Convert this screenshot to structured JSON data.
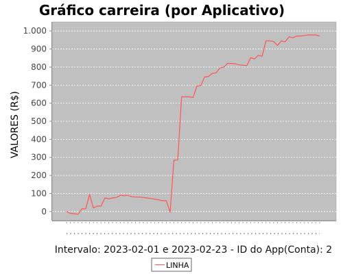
{
  "chart_data": {
    "type": "line",
    "title": "Gráfico carreira (por Aplicativo)",
    "ylabel": "VALORES (R$)",
    "xlabel": "Intervalo: 2023-02-01 e 2023-02-23 - ID do App(Conta): 2",
    "ylim": [
      -50,
      1050
    ],
    "yticks": [
      0,
      100,
      200,
      300,
      400,
      500,
      600,
      700,
      800,
      900,
      1000
    ],
    "ytick_labels": [
      "0",
      "100",
      "200",
      "300",
      "400",
      "500",
      "600",
      "700",
      "800",
      "900",
      "1.000"
    ],
    "grid": true,
    "legend_position": "bottom-center",
    "colors": {
      "line": "#ff5555",
      "plot_bg": "#c0c0c0",
      "grid": "#ffffff"
    },
    "series": [
      {
        "name": "LINHA",
        "values": [
          0,
          -10,
          -12,
          -15,
          15,
          15,
          95,
          20,
          30,
          30,
          75,
          70,
          75,
          78,
          90,
          88,
          90,
          82,
          80,
          80,
          78,
          75,
          72,
          68,
          65,
          60,
          60,
          -5,
          285,
          285,
          635,
          635,
          635,
          632,
          695,
          698,
          745,
          748,
          765,
          768,
          795,
          800,
          820,
          820,
          818,
          812,
          810,
          808,
          852,
          845,
          865,
          860,
          945,
          945,
          942,
          920,
          945,
          940,
          968,
          962,
          972,
          972,
          975,
          978,
          978,
          978,
          972
        ]
      }
    ]
  }
}
